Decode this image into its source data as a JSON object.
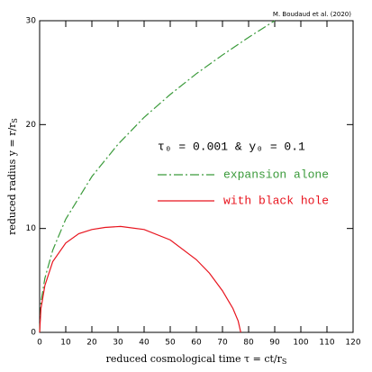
{
  "chart_data": {
    "type": "line",
    "credit": "M. Boudaud et al. (2020)",
    "x_label": {
      "text": "reduced cosmological time τ = ct/r",
      "subscript": "S"
    },
    "y_label": {
      "text": "reduced radius y = r/r",
      "subscript": "S"
    },
    "annotation": "τ₀ = 0.001 & y₀ = 0.1",
    "xlim": [
      0,
      120
    ],
    "ylim": [
      0,
      30
    ],
    "xticks": [
      0,
      10,
      20,
      30,
      40,
      50,
      60,
      70,
      80,
      90,
      100,
      110,
      120
    ],
    "yticks": [
      0,
      10,
      20,
      30
    ],
    "series": [
      {
        "name": "expansion alone",
        "color": "#3a9a3a",
        "dash": "dashdot",
        "x": [
          0,
          0.5,
          2,
          5,
          10,
          20,
          30,
          40,
          50,
          60,
          70,
          80,
          90
        ],
        "values": [
          0,
          2.9,
          5.2,
          7.9,
          10.9,
          15.0,
          18.1,
          20.7,
          22.9,
          24.9,
          26.7,
          28.4,
          30
        ]
      },
      {
        "name": "with black hole",
        "color": "#e8141e",
        "dash": "solid",
        "x": [
          0,
          0.5,
          1,
          2,
          5,
          10,
          15,
          20,
          25,
          31,
          40,
          50,
          60,
          65,
          70,
          74,
          76,
          77
        ],
        "values": [
          0,
          2.3,
          3.0,
          4.5,
          6.8,
          8.6,
          9.5,
          9.9,
          10.1,
          10.2,
          9.9,
          8.9,
          7.0,
          5.7,
          4.0,
          2.3,
          1.1,
          0
        ]
      }
    ]
  }
}
